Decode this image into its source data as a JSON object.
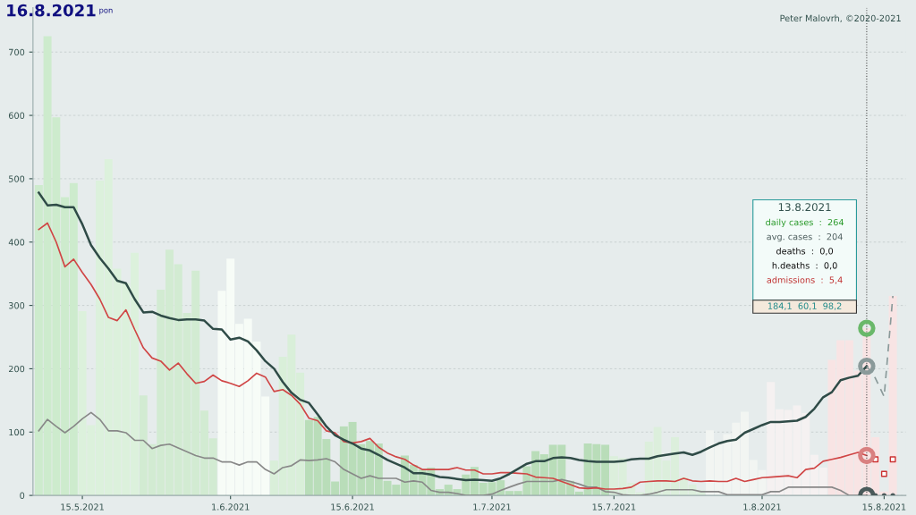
{
  "chart_data": {
    "type": "bar",
    "title": "16.8.2021",
    "subtitle": "pon",
    "x": [
      "2021-05-10",
      "2021-05-11",
      "2021-05-12",
      "2021-05-13",
      "2021-05-14",
      "2021-05-15",
      "2021-05-16",
      "2021-05-17",
      "2021-05-18",
      "2021-05-19",
      "2021-05-20",
      "2021-05-21",
      "2021-05-22",
      "2021-05-23",
      "2021-05-24",
      "2021-05-25",
      "2021-05-26",
      "2021-05-27",
      "2021-05-28",
      "2021-05-29",
      "2021-05-30",
      "2021-05-31",
      "2021-06-01",
      "2021-06-02",
      "2021-06-03",
      "2021-06-04",
      "2021-06-05",
      "2021-06-06",
      "2021-06-07",
      "2021-06-08",
      "2021-06-09",
      "2021-06-10",
      "2021-06-11",
      "2021-06-12",
      "2021-06-13",
      "2021-06-14",
      "2021-06-15",
      "2021-06-16",
      "2021-06-17",
      "2021-06-18",
      "2021-06-19",
      "2021-06-20",
      "2021-06-21",
      "2021-06-22",
      "2021-06-23",
      "2021-06-24",
      "2021-06-25",
      "2021-06-26",
      "2021-06-27",
      "2021-06-28",
      "2021-06-29",
      "2021-06-30",
      "2021-07-01",
      "2021-07-02",
      "2021-07-03",
      "2021-07-04",
      "2021-07-05",
      "2021-07-06",
      "2021-07-07",
      "2021-07-08",
      "2021-07-09",
      "2021-07-10",
      "2021-07-11",
      "2021-07-12",
      "2021-07-13",
      "2021-07-14",
      "2021-07-15",
      "2021-07-16",
      "2021-07-17",
      "2021-07-18",
      "2021-07-19",
      "2021-07-20",
      "2021-07-21",
      "2021-07-22",
      "2021-07-23",
      "2021-07-24",
      "2021-07-25",
      "2021-07-26",
      "2021-07-27",
      "2021-07-28",
      "2021-07-29",
      "2021-07-30",
      "2021-07-31",
      "2021-08-01",
      "2021-08-02",
      "2021-08-03",
      "2021-08-04",
      "2021-08-05",
      "2021-08-06",
      "2021-08-07",
      "2021-08-08",
      "2021-08-09",
      "2021-08-10",
      "2021-08-11",
      "2021-08-12",
      "2021-08-13",
      "2021-08-14",
      "2021-08-15",
      "2021-08-16"
    ],
    "series": [
      {
        "values": [
          490,
          725,
          597,
          471,
          493,
          291,
          111,
          497,
          531,
          358,
          335,
          383,
          158,
          81,
          325,
          388,
          365,
          288,
          355,
          134,
          90,
          323,
          374,
          271,
          279,
          243,
          156,
          55,
          219,
          254,
          194,
          119,
          124,
          89,
          22,
          109,
          116,
          81,
          86,
          82,
          23,
          17,
          63,
          48,
          41,
          44,
          10,
          17,
          10,
          33,
          45,
          20,
          21,
          24,
          7,
          7,
          46,
          70,
          65,
          80,
          80,
          23,
          6,
          82,
          81,
          80,
          62,
          59,
          20,
          5,
          85,
          108,
          55,
          92,
          29,
          17,
          8,
          103,
          83,
          97,
          115,
          132,
          56,
          40,
          179,
          136,
          135,
          142,
          130,
          64,
          44,
          214,
          245,
          245,
          197,
          264,
          92,
          6,
          315
        ],
        "colors": [
          "#cdebcd",
          "#cdebcd",
          "#cdebcd",
          "#cdebcd",
          "#cdebcd",
          "#dcf1dc",
          "#dcf1dc",
          "#dcf1dc",
          "#dcf1dc",
          "#dcf1dc",
          "#dcf1dc",
          "#dcf1dc",
          "#d2ebd2",
          "#d2ebd2",
          "#d2ebd2",
          "#d2ebd2",
          "#d2ebd2",
          "#d2ebd2",
          "#d2ebd2",
          "#d2ebd2",
          "#d2ebd2",
          "#f7fcf7",
          "#f7fcf7",
          "#f7fcf7",
          "#f7fcf7",
          "#f7fcf7",
          "#f7fcf7",
          "#d9efd9",
          "#d9efd9",
          "#d9efd9",
          "#d9efd9",
          "#b9ddb9",
          "#b9ddb9",
          "#b9ddb9",
          "#b9ddb9",
          "#b9ddb9",
          "#b9ddb9",
          "#b9ddb9",
          "#b9ddb9",
          "#b9ddb9",
          "#b9ddb9",
          "#b9ddb9",
          "#b9ddb9",
          "#b9ddb9",
          "#b9ddb9",
          "#b9ddb9",
          "#b9ddb9",
          "#b9ddb9",
          "#b9ddb9",
          "#b9ddb9",
          "#b9ddb9",
          "#b9ddb9",
          "#b9ddb9",
          "#b9ddb9",
          "#b9ddb9",
          "#b9ddb9",
          "#b9ddb9",
          "#b9ddb9",
          "#b9ddb9",
          "#b9ddb9",
          "#b9ddb9",
          "#b9ddb9",
          "#b9ddb9",
          "#b9ddb9",
          "#b9ddb9",
          "#b9ddb9",
          "#dcefdc",
          "#dcefdc",
          "#dcefdc",
          "#dcefdc",
          "#dcefdc",
          "#dcefdc",
          "#dcefdc",
          "#dcefdc",
          "#dcefdc",
          "#dcefdc",
          "#dcefdc",
          "#f2f5f2",
          "#f2f5f2",
          "#f2f5f2",
          "#f2f5f2",
          "#f2f5f2",
          "#f2f5f2",
          "#f2f5f2",
          "#f5f1f1",
          "#f5f1f1",
          "#f5f1f1",
          "#f5f1f1",
          "#f5f1f1",
          "#f5f1f1",
          "#f5f1f1",
          "#f8e4e4",
          "#f8e4e4",
          "#f8e4e4",
          "#f8e4e4",
          "#f8e4e4",
          "#f8e4e4",
          "#f8e4e4",
          "#f8e4e4"
        ]
      },
      {
        "type": "line",
        "color": "#888888",
        "values": [
          102,
          120,
          109,
          99,
          109,
          121,
          131,
          120,
          102,
          102,
          99,
          87,
          87,
          74,
          79,
          81,
          75,
          69,
          63,
          59,
          59,
          53,
          53,
          48,
          53,
          53,
          41,
          34,
          44,
          47,
          56,
          55,
          56,
          58,
          53,
          41,
          34,
          27,
          31,
          27,
          27,
          27,
          21,
          23,
          21,
          8,
          5,
          5,
          3,
          0,
          0,
          0,
          2,
          8,
          13,
          18,
          22,
          22,
          22,
          22,
          25,
          22,
          18,
          13,
          13,
          6,
          5,
          1,
          0,
          0,
          2,
          5,
          9,
          9,
          9,
          9,
          6,
          6,
          6,
          1,
          1,
          1,
          1,
          1,
          6,
          6,
          13,
          13,
          13,
          13,
          13,
          13,
          8,
          0,
          0,
          0,
          null,
          null,
          null
        ]
      },
      {
        "type": "line",
        "color": "#d04545",
        "values": [
          420,
          430,
          400,
          361,
          373,
          352,
          333,
          310,
          281,
          276,
          293,
          262,
          233,
          217,
          212,
          198,
          209,
          192,
          177,
          180,
          190,
          181,
          177,
          172,
          181,
          193,
          187,
          164,
          167,
          158,
          144,
          122,
          118,
          102,
          99,
          85,
          83,
          85,
          90,
          76,
          67,
          61,
          57,
          48,
          41,
          41,
          41,
          41,
          44,
          40,
          40,
          34,
          34,
          36,
          36,
          35,
          34,
          29,
          28,
          27,
          22,
          17,
          12,
          11,
          12,
          10,
          10,
          11,
          13,
          21,
          22,
          23,
          23,
          22,
          27,
          23,
          22,
          23,
          22,
          22,
          27,
          22,
          25,
          28,
          29,
          30,
          31,
          28,
          41,
          43,
          54,
          57,
          60,
          64,
          68,
          63,
          null,
          null,
          null
        ]
      },
      {
        "type": "line",
        "color": "#2f4b47",
        "values": [
          478,
          458,
          459,
          455,
          455,
          428,
          395,
          375,
          358,
          339,
          335,
          310,
          289,
          290,
          284,
          280,
          277,
          278,
          278,
          276,
          263,
          262,
          246,
          249,
          243,
          229,
          212,
          200,
          179,
          162,
          151,
          146,
          128,
          109,
          95,
          88,
          82,
          74,
          71,
          64,
          56,
          50,
          44,
          35,
          35,
          33,
          29,
          28,
          26,
          24,
          25,
          24,
          23,
          27,
          34,
          42,
          50,
          54,
          54,
          59,
          60,
          59,
          56,
          54,
          53,
          53,
          53,
          54,
          57,
          58,
          58,
          62,
          64,
          66,
          68,
          64,
          69,
          76,
          82,
          86,
          88,
          99,
          105,
          111,
          116,
          116,
          117,
          118,
          124,
          137,
          155,
          163,
          182,
          186,
          189,
          204,
          null,
          null,
          null
        ]
      },
      {
        "type": "line",
        "line_style": "dashed",
        "color": "#8a9a9a",
        "x": [
          "2021-08-13",
          "2021-08-14",
          "2021-08-15",
          "2021-08-16"
        ],
        "values": [
          204,
          185,
          156,
          315
        ]
      },
      {
        "type": "scatter",
        "marker": "square",
        "color": "#cc3333",
        "x": [
          "2021-08-14",
          "2021-08-15",
          "2021-08-16"
        ],
        "values": [
          57,
          34,
          57
        ]
      },
      {
        "type": "scatter",
        "marker": "circle",
        "color": "#4a5a5a",
        "x": [
          "2021-08-14",
          "2021-08-15",
          "2021-08-16"
        ],
        "values": [
          0,
          0,
          0
        ]
      },
      {
        "type": "scatter",
        "marker": "circle",
        "x": [
          "2021-08-13",
          "2021-08-13",
          "2021-08-13",
          "2021-08-13"
        ],
        "values": [
          264,
          204,
          63,
          0
        ],
        "colors": [
          "#6ab86a",
          "#8a9a9a",
          "#d98080",
          "#4a5a5a"
        ]
      }
    ],
    "xlim": [
      "2021-05-09T08:00",
      "2021-08-17T12:00"
    ],
    "xticks": [
      {
        "value": "2021-05-15",
        "label": "15.5.2021"
      },
      {
        "value": "2021-06-01",
        "label": "1.6.2021"
      },
      {
        "value": "2021-06-15",
        "label": "15.6.2021"
      },
      {
        "value": "2021-07-01",
        "label": "1.7.2021"
      },
      {
        "value": "2021-07-15",
        "label": "15.7.2021"
      },
      {
        "value": "2021-08-01",
        "label": "1.8.2021"
      },
      {
        "value": "2021-08-15",
        "label": "15.8.2021"
      }
    ],
    "ylim": [
      0,
      770
    ],
    "yticks": [
      0,
      100,
      200,
      300,
      400,
      500,
      600,
      700
    ],
    "grid": "y",
    "legend": false,
    "ref_lines": [
      {
        "axis": "x",
        "value": "2021-08-13",
        "color": "#555555",
        "line_style": "dotted"
      }
    ],
    "annotations": [
      "Peter Malovrh, ©2020-2021",
      "13.8.2021",
      "daily cases  :  264",
      "avg. cases  :  204",
      "deaths  :  0,0",
      "h.deaths  :  0,0",
      "admissions  :  5,4",
      "184,1  60,1  98,2"
    ]
  }
}
